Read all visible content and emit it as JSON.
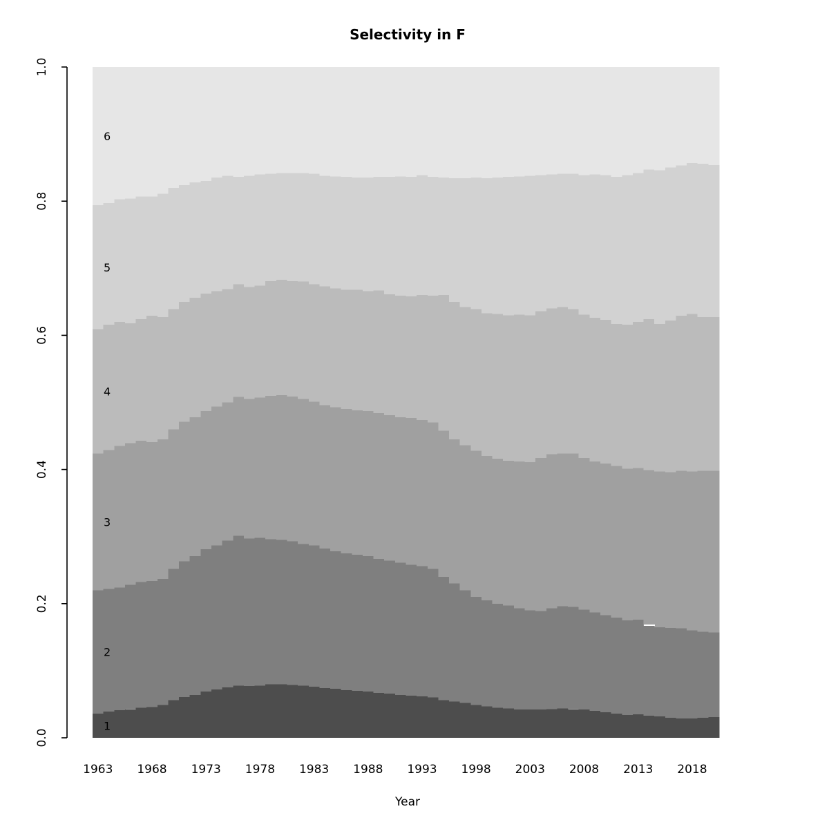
{
  "chart_data": {
    "type": "area",
    "subtype": "stacked-step-proportions",
    "title": "Selectivity in F",
    "xlabel": "Year",
    "ylabel": "",
    "ylim": [
      0.0,
      1.0
    ],
    "grid": false,
    "legend": "none",
    "y_ticks": [
      "0.0",
      "0.2",
      "0.4",
      "0.6",
      "0.8",
      "1.0"
    ],
    "x_ticks": [
      1963,
      1968,
      1973,
      1978,
      1983,
      1988,
      1993,
      1998,
      2003,
      2008,
      2013,
      2018
    ],
    "years": [
      1963,
      1964,
      1965,
      1966,
      1967,
      1968,
      1969,
      1970,
      1971,
      1972,
      1973,
      1974,
      1975,
      1976,
      1977,
      1978,
      1979,
      1980,
      1981,
      1982,
      1983,
      1984,
      1985,
      1986,
      1987,
      1988,
      1989,
      1990,
      1991,
      1992,
      1993,
      1994,
      1995,
      1996,
      1997,
      1998,
      1999,
      2000,
      2001,
      2002,
      2003,
      2004,
      2005,
      2006,
      2007,
      2008,
      2009,
      2010,
      2011,
      2012,
      2013,
      2014,
      2015,
      2016,
      2017,
      2018,
      2019,
      2020
    ],
    "band_labels": [
      "1",
      "2",
      "3",
      "4",
      "5",
      "6"
    ],
    "colors": [
      "#4D4D4D",
      "#7F7F7F",
      "#A0A0A0",
      "#BBBBBB",
      "#D2D2D2",
      "#E6E6E6"
    ],
    "axis_color": "#000000",
    "series": [
      {
        "name": "1",
        "values": [
          0.036,
          0.039,
          0.041,
          0.043,
          0.045,
          0.046,
          0.049,
          0.056,
          0.061,
          0.064,
          0.069,
          0.072,
          0.075,
          0.078,
          0.077,
          0.078,
          0.08,
          0.08,
          0.079,
          0.078,
          0.076,
          0.074,
          0.073,
          0.071,
          0.07,
          0.069,
          0.067,
          0.066,
          0.064,
          0.063,
          0.062,
          0.06,
          0.056,
          0.054,
          0.052,
          0.049,
          0.047,
          0.045,
          0.044,
          0.042,
          0.042,
          0.042,
          0.043,
          0.044,
          0.043,
          0.042,
          0.04,
          0.038,
          0.036,
          0.034,
          0.035,
          0.033,
          0.032,
          0.03,
          0.029,
          0.029,
          0.03,
          0.031
        ]
      },
      {
        "name": "2",
        "values": [
          0.184,
          0.183,
          0.183,
          0.185,
          0.187,
          0.188,
          0.188,
          0.196,
          0.202,
          0.207,
          0.212,
          0.215,
          0.219,
          0.223,
          0.22,
          0.22,
          0.216,
          0.215,
          0.214,
          0.211,
          0.211,
          0.208,
          0.205,
          0.204,
          0.203,
          0.202,
          0.2,
          0.198,
          0.197,
          0.195,
          0.194,
          0.192,
          0.184,
          0.176,
          0.168,
          0.161,
          0.158,
          0.155,
          0.153,
          0.151,
          0.148,
          0.147,
          0.15,
          0.152,
          0.152,
          0.149,
          0.147,
          0.145,
          0.143,
          0.141,
          0.141,
          0.134,
          0.133,
          0.134,
          0.134,
          0.131,
          0.128,
          0.126
        ]
      },
      {
        "name": "3",
        "values": [
          0.204,
          0.207,
          0.211,
          0.211,
          0.211,
          0.207,
          0.208,
          0.208,
          0.208,
          0.207,
          0.206,
          0.207,
          0.206,
          0.207,
          0.208,
          0.209,
          0.214,
          0.216,
          0.216,
          0.216,
          0.214,
          0.214,
          0.215,
          0.215,
          0.215,
          0.216,
          0.217,
          0.217,
          0.217,
          0.219,
          0.218,
          0.218,
          0.218,
          0.215,
          0.216,
          0.218,
          0.215,
          0.216,
          0.216,
          0.219,
          0.221,
          0.228,
          0.23,
          0.228,
          0.229,
          0.226,
          0.225,
          0.226,
          0.226,
          0.226,
          0.226,
          0.232,
          0.232,
          0.232,
          0.235,
          0.237,
          0.24,
          0.241
        ]
      },
      {
        "name": "4",
        "values": [
          0.185,
          0.187,
          0.185,
          0.179,
          0.181,
          0.188,
          0.182,
          0.179,
          0.179,
          0.178,
          0.175,
          0.172,
          0.169,
          0.168,
          0.167,
          0.167,
          0.171,
          0.172,
          0.172,
          0.175,
          0.175,
          0.177,
          0.177,
          0.178,
          0.18,
          0.179,
          0.183,
          0.18,
          0.181,
          0.181,
          0.186,
          0.189,
          0.202,
          0.205,
          0.206,
          0.211,
          0.213,
          0.216,
          0.217,
          0.219,
          0.219,
          0.219,
          0.217,
          0.218,
          0.215,
          0.214,
          0.214,
          0.214,
          0.212,
          0.215,
          0.218,
          0.225,
          0.22,
          0.226,
          0.231,
          0.235,
          0.229,
          0.229
        ]
      },
      {
        "name": "5",
        "values": [
          0.185,
          0.181,
          0.183,
          0.186,
          0.183,
          0.178,
          0.184,
          0.181,
          0.174,
          0.172,
          0.168,
          0.169,
          0.169,
          0.16,
          0.166,
          0.166,
          0.16,
          0.159,
          0.161,
          0.162,
          0.165,
          0.165,
          0.167,
          0.168,
          0.167,
          0.169,
          0.169,
          0.175,
          0.178,
          0.178,
          0.179,
          0.177,
          0.175,
          0.184,
          0.192,
          0.196,
          0.201,
          0.203,
          0.206,
          0.206,
          0.208,
          0.203,
          0.2,
          0.199,
          0.202,
          0.208,
          0.214,
          0.216,
          0.219,
          0.223,
          0.222,
          0.223,
          0.229,
          0.228,
          0.224,
          0.225,
          0.229,
          0.227
        ]
      },
      {
        "name": "6",
        "values": [
          0.206,
          0.203,
          0.197,
          0.196,
          0.193,
          0.193,
          0.189,
          0.18,
          0.176,
          0.172,
          0.17,
          0.165,
          0.162,
          0.164,
          0.162,
          0.16,
          0.159,
          0.158,
          0.158,
          0.158,
          0.159,
          0.162,
          0.163,
          0.164,
          0.165,
          0.165,
          0.164,
          0.164,
          0.163,
          0.164,
          0.161,
          0.164,
          0.165,
          0.166,
          0.166,
          0.165,
          0.166,
          0.165,
          0.164,
          0.163,
          0.162,
          0.161,
          0.16,
          0.159,
          0.159,
          0.161,
          0.16,
          0.161,
          0.164,
          0.161,
          0.158,
          0.153,
          0.154,
          0.15,
          0.147,
          0.143,
          0.144,
          0.146
        ]
      }
    ],
    "white_dash": {
      "year": 2014,
      "x": 932,
      "y": 904,
      "width": 16,
      "height": 2,
      "color": "#FFFFFF"
    }
  }
}
